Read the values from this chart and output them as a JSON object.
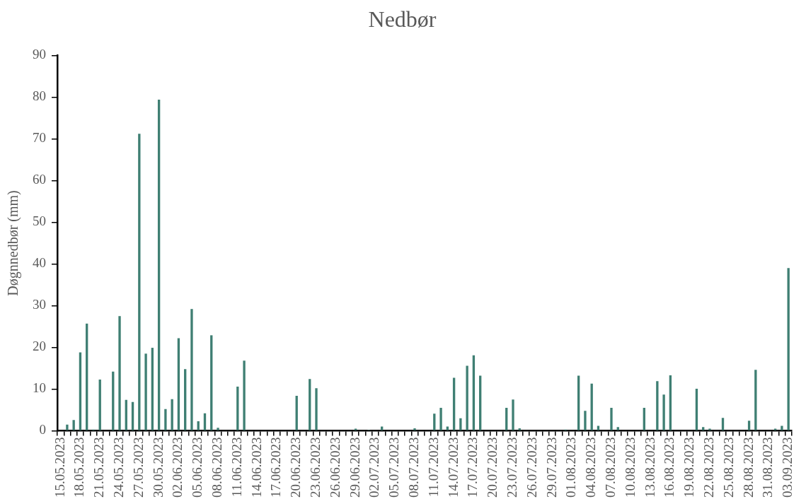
{
  "chart_data": {
    "type": "bar",
    "title": "Nedbør",
    "ylabel": "Døgnnedbør (mm)",
    "categories": [
      "15.05.2023",
      null,
      null,
      "18.05.2023",
      null,
      null,
      "21.05.2023",
      null,
      null,
      "24.05.2023",
      null,
      null,
      "27.05.2023",
      null,
      null,
      "30.05.2023",
      null,
      null,
      "02.06.2023",
      null,
      null,
      "05.06.2023",
      null,
      null,
      "08.06.2023",
      null,
      null,
      "11.06.2023",
      null,
      null,
      "14.06.2023",
      null,
      null,
      "17.06.2023",
      null,
      null,
      "20.06.2023",
      null,
      null,
      "23.06.2023",
      null,
      null,
      "26.06.2023",
      null,
      null,
      "29.06.2023",
      null,
      null,
      "02.07.2023",
      null,
      null,
      "05.07.2023",
      null,
      null,
      "08.07.2023",
      null,
      null,
      "11.07.2023",
      null,
      null,
      "14.07.2023",
      null,
      null,
      "17.07.2023",
      null,
      null,
      "20.07.2023",
      null,
      null,
      "23.07.2023",
      null,
      null,
      "26.07.2023",
      null,
      null,
      "29.07.2023",
      null,
      null,
      "01.08.2023",
      null,
      null,
      "04.08.2023",
      null,
      null,
      "07.08.2023",
      null,
      null,
      "10.08.2023",
      null,
      null,
      "13.08.2023",
      null,
      null,
      "16.08.2023",
      null,
      null,
      "19.08.2023",
      null,
      null,
      "22.08.2023",
      null,
      null,
      "25.08.2023",
      null,
      null,
      "28.08.2023",
      null,
      null,
      "31.08.2023",
      null,
      null,
      "03.09.2023"
    ],
    "values": [
      0,
      1.5,
      2.6,
      18.8,
      25.7,
      0.3,
      12.3,
      0,
      14.2,
      27.5,
      7.4,
      6.9,
      71.2,
      18.5,
      19.9,
      79.4,
      5.2,
      7.6,
      22.2,
      14.8,
      29.2,
      2.3,
      4.2,
      22.9,
      0.7,
      0,
      0,
      10.6,
      16.8,
      0,
      0,
      0,
      0,
      0,
      0,
      0,
      8.4,
      0,
      12.4,
      10.2,
      0,
      0,
      0,
      0,
      0,
      0.5,
      0,
      0.2,
      0,
      1,
      0,
      0,
      0,
      0,
      0.6,
      0,
      0,
      4.1,
      5.5,
      1,
      12.7,
      3,
      15.6,
      18.1,
      13.2,
      0,
      0,
      0,
      5.5,
      7.5,
      0.6,
      0,
      0,
      0,
      0,
      0,
      0,
      0.3,
      0,
      13.2,
      4.8,
      11.3,
      1.2,
      0,
      5.5,
      0.9,
      0,
      0,
      0,
      5.5,
      0,
      11.9,
      8.7,
      13.3,
      0,
      0,
      0,
      10.1,
      0.9,
      0.5,
      0,
      3.1,
      0,
      0,
      0,
      2.4,
      14.6,
      0,
      0,
      0.5,
      1.2,
      39
    ],
    "color": "#3f7f73",
    "ylim": [
      0,
      90
    ],
    "yticks": [
      0,
      10,
      20,
      30,
      40,
      50,
      60,
      70,
      80,
      90
    ],
    "grid": false,
    "legend": false
  }
}
